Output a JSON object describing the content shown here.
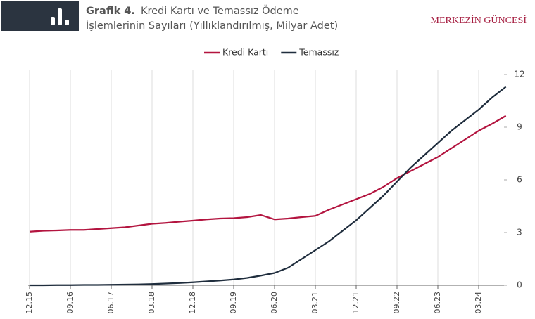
{
  "header": {
    "label": "Grafik 4.",
    "title_lines": [
      "Kredi Kartı ve Temassız Ödeme",
      "İşlemlerinin Sayıları (Yıllıklandırılmış,  Milyar Adet)"
    ],
    "brand": "MERKEZİN GÜNCESİ"
  },
  "chart_data": {
    "type": "line",
    "categories": [
      "12.15",
      null,
      null,
      "09.16",
      null,
      null,
      "06.17",
      null,
      null,
      "03.18",
      null,
      null,
      "12.18",
      null,
      null,
      "09.19",
      null,
      null,
      "06.20",
      null,
      null,
      "03.21",
      null,
      null,
      "12.21",
      null,
      null,
      "09.22",
      null,
      null,
      "06.23",
      null,
      null,
      "03.24",
      null,
      null
    ],
    "series": [
      {
        "name": "Kredi Kartı",
        "color": "#b3143f",
        "values": [
          3.05,
          3.1,
          3.12,
          3.15,
          3.15,
          3.2,
          3.25,
          3.3,
          3.4,
          3.5,
          3.55,
          3.62,
          3.68,
          3.75,
          3.8,
          3.82,
          3.88,
          4.0,
          3.75,
          3.8,
          3.88,
          3.95,
          4.3,
          4.6,
          4.9,
          5.2,
          5.6,
          6.1,
          6.5,
          6.9,
          7.3,
          7.8,
          8.3,
          8.8,
          9.2,
          9.65
        ]
      },
      {
        "name": "Temassız",
        "color": "#1f2d3d",
        "values": [
          0,
          0,
          0.01,
          0.01,
          0.02,
          0.02,
          0.03,
          0.04,
          0.05,
          0.07,
          0.1,
          0.13,
          0.17,
          0.22,
          0.27,
          0.33,
          0.42,
          0.55,
          0.7,
          1.0,
          1.5,
          2.0,
          2.5,
          3.1,
          3.7,
          4.4,
          5.1,
          5.9,
          6.7,
          7.4,
          8.1,
          8.8,
          9.4,
          10.0,
          10.7,
          11.3
        ]
      }
    ],
    "ylim": [
      0,
      12
    ],
    "yticks": [
      0,
      3,
      6,
      9,
      12
    ],
    "grid": true,
    "legend": "top"
  }
}
